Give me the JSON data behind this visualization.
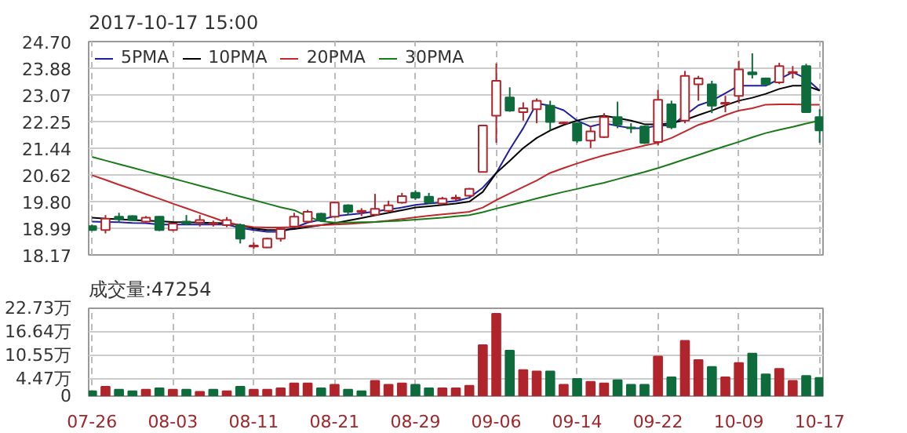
{
  "chart_data": [
    {
      "type": "candlestick",
      "title": "2017-10-17 15:00",
      "categories": [
        null,
        null,
        null,
        null,
        null,
        null,
        null,
        null,
        null,
        null,
        null,
        null,
        null,
        null,
        null,
        null,
        null,
        null,
        null,
        null,
        null,
        null,
        null,
        null,
        null,
        null,
        null,
        null,
        null,
        null,
        null,
        null,
        null,
        null,
        null,
        null,
        null,
        null,
        null,
        null,
        null,
        null,
        null,
        null,
        null,
        null,
        null,
        null,
        null,
        null,
        null,
        null,
        null,
        null,
        null
      ],
      "ohlc": [
        [
          19.05,
          19.1,
          18.9,
          18.93
        ],
        [
          18.93,
          19.39,
          18.83,
          19.28
        ],
        [
          19.34,
          19.46,
          19.16,
          19.27
        ],
        [
          19.36,
          19.38,
          19.22,
          19.24
        ],
        [
          19.19,
          19.36,
          19.16,
          19.31
        ],
        [
          19.34,
          19.36,
          18.9,
          18.93
        ],
        [
          18.93,
          19.16,
          18.9,
          19.13
        ],
        [
          19.19,
          19.39,
          19.08,
          19.13
        ],
        [
          19.16,
          19.39,
          19.04,
          19.24
        ],
        [
          19.12,
          19.22,
          19.04,
          19.14
        ],
        [
          19.08,
          19.33,
          19.02,
          19.24
        ],
        [
          19.08,
          19.13,
          18.52,
          18.67
        ],
        [
          18.43,
          18.55,
          18.36,
          18.46
        ],
        [
          18.4,
          18.7,
          18.38,
          18.67
        ],
        [
          18.67,
          18.99,
          18.58,
          18.96
        ],
        [
          19.04,
          19.46,
          19.02,
          19.34
        ],
        [
          19.19,
          19.55,
          19.16,
          19.49
        ],
        [
          19.43,
          19.46,
          19.19,
          19.22
        ],
        [
          19.34,
          19.8,
          19.31,
          19.77
        ],
        [
          19.69,
          19.72,
          19.4,
          19.49
        ],
        [
          19.49,
          19.6,
          19.36,
          19.52
        ],
        [
          19.4,
          20.04,
          19.37,
          19.58
        ],
        [
          19.52,
          19.83,
          19.46,
          19.69
        ],
        [
          19.77,
          20.07,
          19.74,
          19.97
        ],
        [
          20.07,
          20.15,
          19.86,
          19.92
        ],
        [
          19.95,
          20.07,
          19.74,
          19.77
        ],
        [
          19.74,
          19.95,
          19.71,
          19.89
        ],
        [
          19.89,
          20.01,
          19.83,
          19.92
        ],
        [
          19.98,
          20.22,
          19.95,
          20.19
        ],
        [
          20.71,
          22.13,
          20.71,
          22.13
        ],
        [
          22.43,
          24.03,
          21.6,
          23.5
        ],
        [
          22.99,
          23.3,
          22.55,
          22.59
        ],
        [
          22.54,
          22.84,
          22.28,
          22.66
        ],
        [
          22.63,
          22.96,
          22.2,
          22.89
        ],
        [
          22.74,
          22.89,
          21.98,
          22.24
        ],
        [
          22.2,
          22.25,
          22.17,
          22.22
        ],
        [
          22.2,
          22.22,
          21.6,
          21.67
        ],
        [
          21.67,
          22.13,
          21.44,
          21.95
        ],
        [
          21.78,
          22.51,
          21.75,
          22.39
        ],
        [
          22.39,
          22.86,
          22.05,
          22.16
        ],
        [
          22.07,
          22.2,
          21.9,
          22.05
        ],
        [
          22.1,
          22.13,
          21.57,
          21.6
        ],
        [
          21.63,
          23.22,
          21.52,
          22.92
        ],
        [
          22.78,
          22.89,
          22.02,
          22.08
        ],
        [
          22.28,
          23.8,
          22.2,
          23.65
        ],
        [
          23.39,
          23.65,
          22.89,
          23.57
        ],
        [
          23.39,
          23.5,
          22.51,
          22.74
        ],
        [
          22.8,
          23.04,
          22.54,
          22.83
        ],
        [
          23.04,
          24.11,
          22.81,
          23.85
        ],
        [
          23.76,
          24.34,
          23.57,
          23.7
        ],
        [
          23.57,
          23.6,
          23.36,
          23.39
        ],
        [
          23.45,
          24.05,
          23.4,
          23.95
        ],
        [
          23.74,
          23.95,
          23.57,
          23.77
        ],
        [
          23.95,
          24.02,
          22.54,
          22.54
        ],
        [
          22.39,
          22.63,
          21.6,
          21.98
        ]
      ],
      "colors": [
        "#0e6b3b",
        "#b0252b",
        "#0e6b3b",
        "#0e6b3b",
        "#b0252b",
        "#0e6b3b",
        "#b0252b",
        "#0e6b3b",
        "#b0252b",
        "#b0252b",
        "#b0252b",
        "#0e6b3b",
        "#b0252b",
        "#b0252b",
        "#b0252b",
        "#b0252b",
        "#b0252b",
        "#0e6b3b",
        "#b0252b",
        "#0e6b3b",
        "#b0252b",
        "#b0252b",
        "#b0252b",
        "#b0252b",
        "#0e6b3b",
        "#0e6b3b",
        "#b0252b",
        "#b0252b",
        "#b0252b",
        "#b0252b",
        "#b0252b",
        "#0e6b3b",
        "#b0252b",
        "#b0252b",
        "#0e6b3b",
        "#b0252b",
        "#0e6b3b",
        "#b0252b",
        "#b0252b",
        "#0e6b3b",
        "#0e6b3b",
        "#0e6b3b",
        "#b0252b",
        "#0e6b3b",
        "#b0252b",
        "#b0252b",
        "#0e6b3b",
        "#b0252b",
        "#b0252b",
        "#0e6b3b",
        "#0e6b3b",
        "#b0252b",
        "#b0252b",
        "#0e6b3b",
        "#0e6b3b"
      ],
      "series": [
        {
          "name": "5PMA",
          "type": "line",
          "color": "#1f1f9e",
          "values": [
            19.19,
            19.18,
            19.17,
            19.15,
            19.14,
            19.1,
            19.1,
            19.1,
            19.1,
            19.1,
            19.1,
            19.0,
            18.93,
            18.88,
            18.88,
            19.0,
            19.16,
            19.25,
            19.36,
            19.4,
            19.44,
            19.5,
            19.56,
            19.62,
            19.7,
            19.74,
            19.78,
            19.82,
            19.92,
            20.23,
            20.68,
            21.4,
            22.05,
            22.81,
            22.74,
            22.6,
            22.28,
            22.1,
            22.2,
            22.12,
            22.05,
            22.05,
            22.13,
            22.13,
            22.44,
            22.75,
            22.89,
            23.12,
            23.35,
            23.35,
            23.35,
            23.55,
            23.76,
            23.57,
            23.2
          ]
        },
        {
          "name": "10PMA",
          "type": "line",
          "color": "#000000",
          "values": [
            19.31,
            19.28,
            19.26,
            19.24,
            19.22,
            19.2,
            19.18,
            19.17,
            19.16,
            19.15,
            19.14,
            19.08,
            18.98,
            18.93,
            18.93,
            18.96,
            19.02,
            19.08,
            19.14,
            19.22,
            19.3,
            19.38,
            19.46,
            19.54,
            19.62,
            19.66,
            19.7,
            19.74,
            19.8,
            20.1,
            20.68,
            21.05,
            21.44,
            21.75,
            21.98,
            22.15,
            22.28,
            22.38,
            22.43,
            22.36,
            22.28,
            22.17,
            22.17,
            22.2,
            22.3,
            22.45,
            22.59,
            22.75,
            22.89,
            22.98,
            23.1,
            23.25,
            23.35,
            23.35,
            23.2
          ]
        },
        {
          "name": "20PMA",
          "type": "line",
          "color": "#c0282b",
          "values": [
            20.61,
            20.47,
            20.32,
            20.18,
            20.03,
            19.89,
            19.74,
            19.6,
            19.45,
            19.31,
            19.16,
            19.08,
            19.02,
            19.01,
            19.01,
            19.02,
            19.05,
            19.08,
            19.1,
            19.12,
            19.15,
            19.18,
            19.22,
            19.27,
            19.32,
            19.37,
            19.41,
            19.45,
            19.49,
            19.62,
            19.85,
            20.05,
            20.25,
            20.45,
            20.68,
            20.83,
            20.97,
            21.1,
            21.22,
            21.32,
            21.42,
            21.52,
            21.6,
            21.75,
            21.95,
            22.15,
            22.28,
            22.45,
            22.59,
            22.66,
            22.77,
            22.78,
            22.78,
            22.77,
            22.77
          ]
        },
        {
          "name": "30PMA",
          "type": "line",
          "color": "#1a7a1a",
          "values": [
            21.17,
            21.06,
            20.95,
            20.84,
            20.73,
            20.62,
            20.51,
            20.4,
            20.29,
            20.18,
            20.07,
            19.96,
            19.85,
            19.74,
            19.63,
            19.54,
            19.35,
            19.2,
            19.16,
            19.16,
            19.17,
            19.18,
            19.2,
            19.22,
            19.25,
            19.28,
            19.31,
            19.35,
            19.39,
            19.48,
            19.59,
            19.69,
            19.79,
            19.9,
            20.0,
            20.1,
            20.19,
            20.29,
            20.38,
            20.49,
            20.6,
            20.71,
            20.83,
            20.96,
            21.1,
            21.23,
            21.37,
            21.5,
            21.63,
            21.77,
            21.9,
            22.0,
            22.09,
            22.19,
            22.28
          ]
        }
      ],
      "ylim": [
        18.17,
        24.7
      ],
      "yticks": [
        18.17,
        18.99,
        {
          "value": 19.8,
          "label": "19.80"
        },
        20.62,
        21.44,
        22.25,
        23.07,
        23.88,
        {
          "value": 24.7,
          "label": "24.70"
        }
      ],
      "grid": true,
      "legend": "top",
      "tick_labels": "y"
    },
    {
      "type": "bar",
      "title": "成交量:47254",
      "categories": [
        "07-26",
        null,
        null,
        null,
        null,
        null,
        "08-03",
        null,
        null,
        null,
        null,
        null,
        "08-11",
        null,
        null,
        null,
        null,
        null,
        "08-21",
        null,
        null,
        null,
        null,
        null,
        "08-29",
        null,
        null,
        null,
        null,
        null,
        "09-06",
        null,
        null,
        null,
        null,
        null,
        "09-14",
        null,
        null,
        null,
        null,
        null,
        "09-22",
        null,
        null,
        null,
        null,
        null,
        "10-09",
        null,
        null,
        null,
        null,
        null,
        "10-17"
      ],
      "values": [
        1.27,
        2.42,
        1.65,
        1.27,
        1.65,
        2.04,
        1.65,
        1.65,
        1.14,
        1.65,
        1.27,
        2.42,
        1.65,
        1.65,
        2.04,
        3.32,
        3.32,
        2.04,
        2.93,
        1.65,
        1.27,
        3.96,
        2.93,
        3.32,
        2.93,
        2.04,
        2.04,
        2.04,
        2.68,
        13.17,
        21.33,
        11.77,
        6.77,
        6.39,
        6.39,
        2.93,
        4.47,
        3.7,
        3.32,
        4.09,
        2.93,
        2.93,
        10.23,
        4.85,
        14.33,
        9.33,
        7.54,
        4.85,
        8.57,
        11.0,
        5.62,
        7.03,
        3.96,
        5.24,
        4.73
      ],
      "colors": [
        "#0e6b3b",
        "#b0252b",
        "#0e6b3b",
        "#0e6b3b",
        "#b0252b",
        "#0e6b3b",
        "#b0252b",
        "#0e6b3b",
        "#b0252b",
        "#0e6b3b",
        "#b0252b",
        "#0e6b3b",
        "#b0252b",
        "#b0252b",
        "#b0252b",
        "#b0252b",
        "#b0252b",
        "#0e6b3b",
        "#b0252b",
        "#0e6b3b",
        "#0e6b3b",
        "#b0252b",
        "#b0252b",
        "#b0252b",
        "#0e6b3b",
        "#0e6b3b",
        "#b0252b",
        "#b0252b",
        "#b0252b",
        "#b0252b",
        "#b0252b",
        "#0e6b3b",
        "#b0252b",
        "#b0252b",
        "#0e6b3b",
        "#b0252b",
        "#0e6b3b",
        "#b0252b",
        "#b0252b",
        "#0e6b3b",
        "#0e6b3b",
        "#0e6b3b",
        "#b0252b",
        "#0e6b3b",
        "#b0252b",
        "#b0252b",
        "#0e6b3b",
        "#b0252b",
        "#b0252b",
        "#0e6b3b",
        "#0e6b3b",
        "#b0252b",
        "#b0252b",
        "#0e6b3b",
        "#0e6b3b"
      ],
      "ylim": [
        0,
        22.73
      ],
      "yticks": [
        0,
        {
          "value": 4.47,
          "label": "4.47万"
        },
        {
          "value": 10.55,
          "label": "10.55万"
        },
        {
          "value": 16.64,
          "label": "16.64万"
        },
        {
          "value": 22.73,
          "label": "22.73万"
        }
      ],
      "grid": true
    }
  ]
}
